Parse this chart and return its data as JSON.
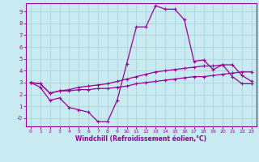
{
  "background_color": "#c8eaf0",
  "grid_color": "#aad4dc",
  "line_color": "#990099",
  "xlabel": "Windchill (Refroidissement éolien,°C)",
  "xlim": [
    -0.5,
    23.5
  ],
  "ylim": [
    -0.7,
    9.7
  ],
  "yticks": [
    0,
    1,
    2,
    3,
    4,
    5,
    6,
    7,
    8,
    9
  ],
  "ytick_labels": [
    "-0",
    "1",
    "2",
    "3",
    "4",
    "5",
    "6",
    "7",
    "8",
    "9"
  ],
  "xticks": [
    0,
    1,
    2,
    3,
    4,
    5,
    6,
    7,
    8,
    9,
    10,
    11,
    12,
    13,
    14,
    15,
    16,
    17,
    18,
    19,
    20,
    21,
    22,
    23
  ],
  "series1_x": [
    0,
    1,
    2,
    3,
    4,
    5,
    6,
    7,
    8,
    9,
    10,
    11,
    12,
    13,
    14,
    15,
    16,
    17,
    18,
    19,
    20,
    21,
    22,
    23
  ],
  "series1_y": [
    3.0,
    2.6,
    1.5,
    1.7,
    0.9,
    0.7,
    0.5,
    -0.3,
    -0.3,
    1.5,
    4.6,
    7.7,
    7.7,
    9.5,
    9.2,
    9.2,
    8.3,
    4.8,
    4.9,
    4.1,
    4.5,
    3.5,
    2.9,
    2.9
  ],
  "series2_x": [
    0,
    1,
    2,
    3,
    4,
    5,
    6,
    7,
    8,
    9,
    10,
    11,
    12,
    13,
    14,
    15,
    16,
    17,
    18,
    19,
    20,
    21,
    22,
    23
  ],
  "series2_y": [
    3.0,
    2.9,
    2.1,
    2.3,
    2.3,
    2.4,
    2.4,
    2.5,
    2.5,
    2.6,
    2.7,
    2.9,
    3.0,
    3.1,
    3.2,
    3.3,
    3.4,
    3.5,
    3.5,
    3.6,
    3.7,
    3.8,
    3.9,
    3.9
  ],
  "series3_x": [
    0,
    1,
    2,
    3,
    4,
    5,
    6,
    7,
    8,
    9,
    10,
    11,
    12,
    13,
    14,
    15,
    16,
    17,
    18,
    19,
    20,
    21,
    22,
    23
  ],
  "series3_y": [
    3.0,
    2.9,
    2.1,
    2.3,
    2.4,
    2.6,
    2.7,
    2.8,
    2.9,
    3.1,
    3.3,
    3.5,
    3.7,
    3.9,
    4.0,
    4.1,
    4.2,
    4.3,
    4.4,
    4.4,
    4.5,
    4.5,
    3.6,
    3.1
  ]
}
